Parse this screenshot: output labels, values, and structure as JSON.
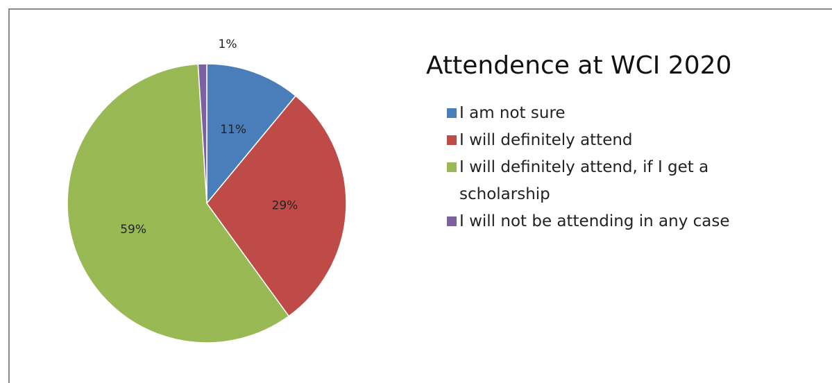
{
  "chart_data": {
    "type": "pie",
    "title": "Attendence at WCI 2020",
    "categories": [
      "I am not sure",
      "I will definitely attend",
      "I will definitely attend, if I get a scholarship",
      "I will not be attending in any case"
    ],
    "values": [
      11,
      29,
      59,
      1
    ],
    "value_labels": [
      "11%",
      "29%",
      "59%",
      "1%"
    ],
    "colors": [
      "#4a7ebb",
      "#be4b48",
      "#98b954",
      "#7d60a0"
    ],
    "legend": "right"
  }
}
